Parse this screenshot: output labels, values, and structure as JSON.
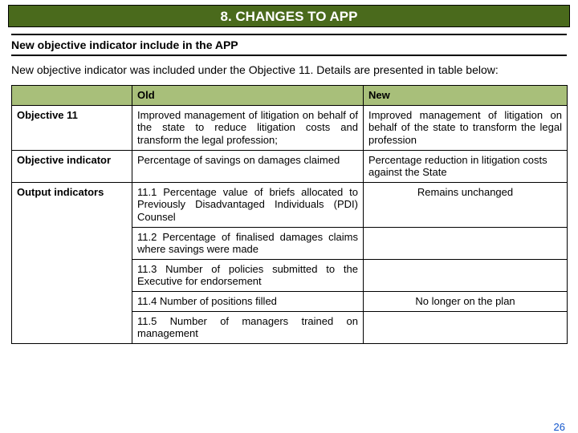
{
  "title": "8. CHANGES TO APP",
  "subtitle": "New  objective indicator include in the APP",
  "intro": "New  objective indicator was included under the Objective 11. Details are presented in table below:",
  "header_old": "Old",
  "header_new": "New",
  "rows": {
    "obj11": {
      "label": "Objective 11",
      "old": "Improved management of litigation on behalf of the state to reduce litigation costs and transform the legal profession;",
      "new": "Improved  management of litigation on behalf of the state to transform the legal profession"
    },
    "objind": {
      "label": "Objective indicator",
      "old": "Percentage of savings on damages claimed",
      "new": "Percentage reduction in litigation costs against the State"
    },
    "out1": {
      "label": "Output indicators",
      "old": "11.1 Percentage value of briefs allocated to Previously Disadvantaged Individuals (PDI) Counsel",
      "new": "Remains unchanged"
    },
    "out2": {
      "old": "11.2 Percentage of finalised damages claims where savings were made",
      "new": ""
    },
    "out3": {
      "old": "11.3 Number of policies submitted to the Executive for endorsement",
      "new": ""
    },
    "out4": {
      "old": "11.4 Number of positions filled",
      "new": "No longer on the plan"
    },
    "out5": {
      "old": "11.5  Number  of managers trained on management",
      "new": ""
    }
  },
  "page_number": "26",
  "colors": {
    "title_bg": "#4a6a1c",
    "header_bg": "#a8bf7a",
    "page_num": "#1155cc"
  }
}
